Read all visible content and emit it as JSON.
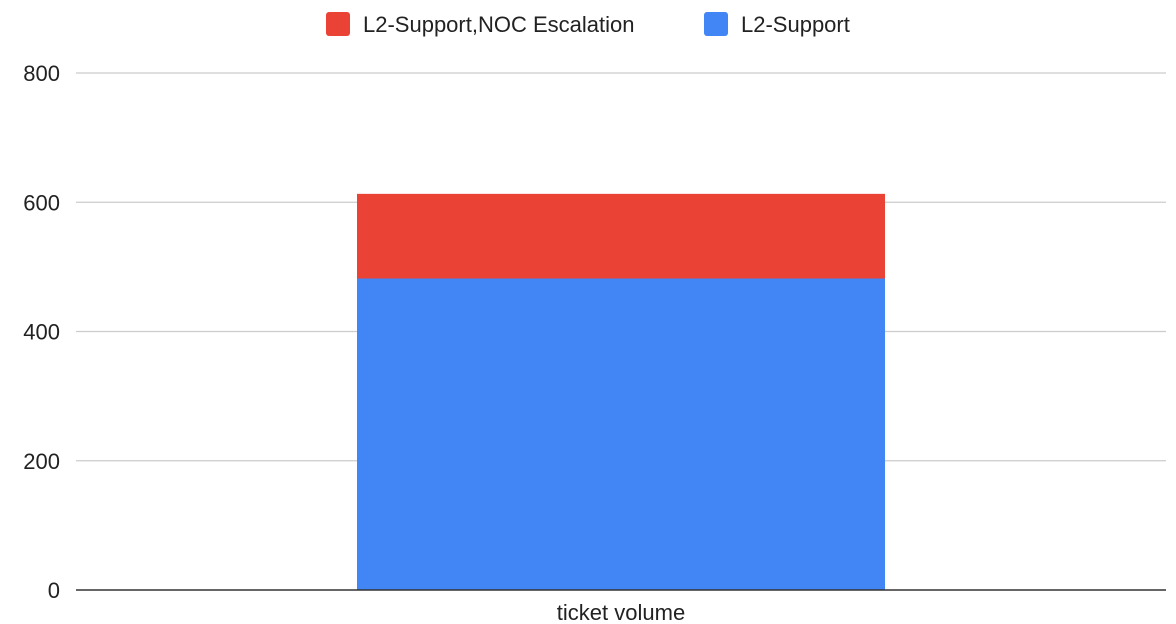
{
  "chart_data": {
    "type": "bar",
    "stacked": true,
    "categories": [
      "ticket volume"
    ],
    "series": [
      {
        "name": "L2-Support",
        "values": [
          482
        ],
        "color": "#4285F4"
      },
      {
        "name": "L2-Support,NOC Escalation",
        "values": [
          131
        ],
        "color": "#EA4335"
      }
    ],
    "legend": {
      "position": "top-center",
      "order": [
        "L2-Support,NOC Escalation",
        "L2-Support"
      ]
    },
    "ylim": [
      0,
      800
    ],
    "yticks": [
      0,
      200,
      400,
      600,
      800
    ],
    "grid": true,
    "title": "",
    "xlabel": "",
    "ylabel": ""
  }
}
